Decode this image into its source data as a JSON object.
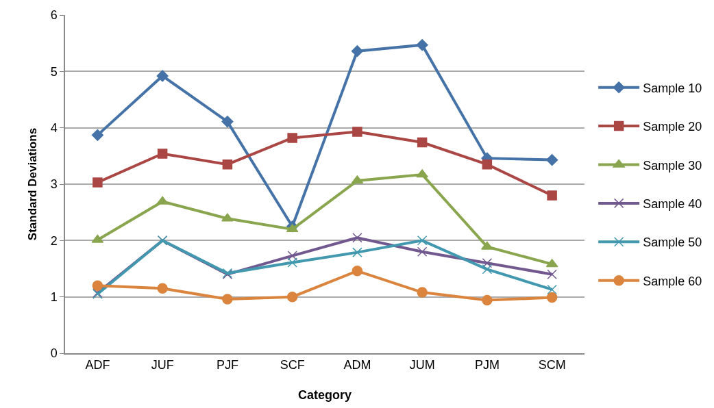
{
  "chart_data": {
    "type": "line",
    "xlabel": "Category",
    "ylabel": "Standard Deviations",
    "categories": [
      "ADF",
      "JUF",
      "PJF",
      "SCF",
      "ADM",
      "JUM",
      "PJM",
      "SCM"
    ],
    "ylim": [
      0,
      6
    ],
    "yticks": [
      0,
      1,
      2,
      3,
      4,
      5,
      6
    ],
    "grid": "y",
    "legend": "right",
    "line_style": "solid",
    "series": [
      {
        "name": "Sample 10",
        "color": "#4572a7",
        "marker": "diamond",
        "values": [
          3.87,
          4.92,
          4.11,
          2.25,
          5.36,
          5.47,
          3.46,
          3.43
        ]
      },
      {
        "name": "Sample 20",
        "color": "#aa4643",
        "marker": "square",
        "values": [
          3.03,
          3.54,
          3.35,
          3.82,
          3.93,
          3.74,
          3.35,
          2.8
        ]
      },
      {
        "name": "Sample 30",
        "color": "#89a54e",
        "marker": "triangle",
        "values": [
          2.01,
          2.69,
          2.39,
          2.2,
          3.06,
          3.17,
          1.89,
          1.58
        ]
      },
      {
        "name": "Sample 40",
        "color": "#71588f",
        "marker": "cross",
        "values": [
          1.07,
          2.0,
          1.4,
          1.73,
          2.05,
          1.8,
          1.6,
          1.4
        ]
      },
      {
        "name": "Sample 50",
        "color": "#4198af",
        "marker": "cross",
        "values": [
          1.05,
          2.0,
          1.42,
          1.61,
          1.79,
          2.0,
          1.49,
          1.13
        ]
      },
      {
        "name": "Sample 60",
        "color": "#db843d",
        "marker": "circle",
        "values": [
          1.2,
          1.15,
          0.96,
          1.0,
          1.46,
          1.08,
          0.94,
          0.99
        ]
      }
    ]
  }
}
